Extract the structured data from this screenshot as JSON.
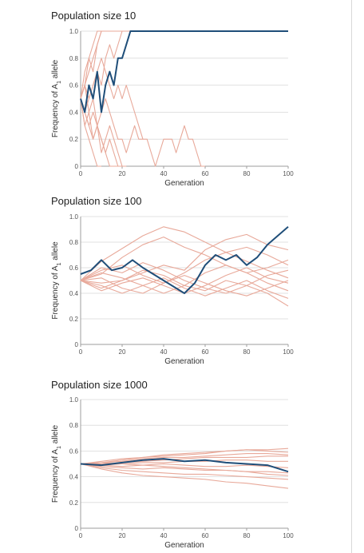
{
  "colors": {
    "highlight": "#1f4e79",
    "background_lines": "#e8a99a",
    "grid": "#d9d9d9",
    "axis": "#9e9e9e"
  },
  "chart_data": [
    {
      "type": "line",
      "title": "Population size 10",
      "xlabel": "Generation",
      "ylabel": "Frequency of A1 allele",
      "xlim": [
        0,
        100
      ],
      "ylim": [
        0,
        1.0
      ],
      "xticks": [
        0,
        20,
        40,
        60,
        80,
        100
      ],
      "yticks": [
        0,
        0.2,
        0.4,
        0.6,
        0.8,
        1.0
      ],
      "ytick_labels": [
        "0",
        "0.2",
        "0.4",
        "0.6",
        "0.8",
        "1.0"
      ],
      "grid": true,
      "highlight_series": {
        "x": [
          0,
          2,
          4,
          6,
          8,
          10,
          12,
          14,
          16,
          18,
          20,
          22,
          24,
          26,
          28,
          30,
          35,
          40,
          50,
          60,
          70,
          80,
          90,
          100
        ],
        "y": [
          0.5,
          0.4,
          0.6,
          0.5,
          0.7,
          0.4,
          0.6,
          0.7,
          0.6,
          0.8,
          0.8,
          0.9,
          1.0,
          1.0,
          1.0,
          1.0,
          1.0,
          1.0,
          1.0,
          1.0,
          1.0,
          1.0,
          1.0,
          1.0
        ]
      },
      "background_series": [
        {
          "x": [
            0,
            2,
            4,
            6,
            8,
            10,
            12,
            14,
            16,
            18,
            20
          ],
          "y": [
            0.5,
            0.6,
            0.7,
            0.8,
            0.9,
            1.0,
            1.0,
            1.0,
            1.0,
            1.0,
            1.0
          ]
        },
        {
          "x": [
            0,
            2,
            4,
            6,
            8,
            10,
            12,
            14
          ],
          "y": [
            0.5,
            0.7,
            0.8,
            0.9,
            1.0,
            1.0,
            1.0,
            1.0
          ]
        },
        {
          "x": [
            0,
            2,
            4,
            6,
            8,
            10,
            12,
            14,
            16
          ],
          "y": [
            0.5,
            0.6,
            0.8,
            0.7,
            0.9,
            1.0,
            1.0,
            1.0,
            1.0
          ]
        },
        {
          "x": [
            0,
            2,
            4,
            6,
            8,
            10,
            12,
            14,
            16,
            18,
            20,
            22,
            24
          ],
          "y": [
            0.5,
            0.4,
            0.5,
            0.6,
            0.7,
            0.6,
            0.8,
            0.9,
            0.8,
            0.9,
            1.0,
            1.0,
            1.0
          ]
        },
        {
          "x": [
            0,
            2,
            4,
            6,
            8,
            10,
            12,
            14,
            16,
            18,
            20,
            22,
            24,
            26,
            28,
            30
          ],
          "y": [
            0.5,
            0.6,
            0.5,
            0.6,
            0.7,
            0.8,
            0.7,
            0.6,
            0.5,
            0.6,
            0.5,
            0.6,
            0.5,
            0.4,
            0.3,
            0.2
          ]
        },
        {
          "x": [
            0,
            2,
            4,
            6,
            8,
            10,
            12,
            14,
            16,
            18,
            20,
            22,
            24,
            26,
            28,
            30,
            32,
            34,
            36,
            38,
            40,
            42,
            44,
            46,
            48,
            50,
            52,
            54,
            56,
            58,
            60
          ],
          "y": [
            0.5,
            0.6,
            0.4,
            0.5,
            0.3,
            0.4,
            0.5,
            0.4,
            0.3,
            0.2,
            0.2,
            0.1,
            0.2,
            0.3,
            0.2,
            0.2,
            0.2,
            0.1,
            0.0,
            0.1,
            0.2,
            0.2,
            0.2,
            0.1,
            0.2,
            0.3,
            0.2,
            0.2,
            0.1,
            0.0,
            0.0
          ]
        },
        {
          "x": [
            0,
            2,
            4,
            6,
            8,
            10,
            12,
            14,
            16,
            18,
            20
          ],
          "y": [
            0.5,
            0.4,
            0.3,
            0.4,
            0.3,
            0.2,
            0.1,
            0.2,
            0.1,
            0.0,
            0.0
          ]
        },
        {
          "x": [
            0,
            2,
            4,
            6,
            8,
            10,
            12,
            14,
            16,
            18
          ],
          "y": [
            0.5,
            0.4,
            0.3,
            0.2,
            0.3,
            0.2,
            0.1,
            0.0,
            0.0,
            0.0
          ]
        },
        {
          "x": [
            0,
            2,
            4,
            6,
            8,
            10,
            12,
            14,
            16,
            18,
            20,
            22
          ],
          "y": [
            0.5,
            0.3,
            0.4,
            0.2,
            0.3,
            0.1,
            0.2,
            0.3,
            0.2,
            0.1,
            0.0,
            0.0
          ]
        },
        {
          "x": [
            0,
            2,
            4,
            6,
            8,
            10
          ],
          "y": [
            0.5,
            0.3,
            0.2,
            0.1,
            0.0,
            0.0
          ]
        }
      ]
    },
    {
      "type": "line",
      "title": "Population size 100",
      "xlabel": "Generation",
      "ylabel": "Frequency of A1 allele",
      "xlim": [
        0,
        100
      ],
      "ylim": [
        0,
        1.0
      ],
      "xticks": [
        0,
        20,
        40,
        60,
        80,
        100
      ],
      "yticks": [
        0,
        0.2,
        0.4,
        0.6,
        0.8,
        1.0
      ],
      "ytick_labels": [
        "0",
        "0.2",
        "0.4",
        "0.6",
        "0.8",
        "1.0"
      ],
      "grid": true,
      "highlight_series": {
        "x": [
          0,
          5,
          10,
          15,
          20,
          25,
          30,
          35,
          40,
          45,
          50,
          55,
          60,
          65,
          70,
          75,
          80,
          85,
          90,
          95,
          100
        ],
        "y": [
          0.55,
          0.58,
          0.66,
          0.58,
          0.6,
          0.66,
          0.6,
          0.55,
          0.5,
          0.45,
          0.4,
          0.48,
          0.62,
          0.7,
          0.66,
          0.7,
          0.62,
          0.68,
          0.78,
          0.85,
          0.92
        ]
      },
      "background_series": [
        {
          "x": [
            0,
            10,
            20,
            30,
            40,
            50,
            60,
            70,
            80,
            90,
            100
          ],
          "y": [
            0.5,
            0.65,
            0.75,
            0.85,
            0.92,
            0.88,
            0.8,
            0.72,
            0.65,
            0.58,
            0.52
          ]
        },
        {
          "x": [
            0,
            10,
            20,
            30,
            40,
            50,
            60,
            70,
            80,
            90,
            100
          ],
          "y": [
            0.5,
            0.55,
            0.68,
            0.78,
            0.84,
            0.76,
            0.7,
            0.62,
            0.56,
            0.6,
            0.66
          ]
        },
        {
          "x": [
            0,
            10,
            20,
            30,
            40,
            50,
            60,
            70,
            80,
            90,
            100
          ],
          "y": [
            0.5,
            0.48,
            0.5,
            0.56,
            0.62,
            0.58,
            0.74,
            0.82,
            0.86,
            0.78,
            0.74
          ]
        },
        {
          "x": [
            0,
            10,
            20,
            30,
            40,
            50,
            60,
            70,
            80,
            90,
            100
          ],
          "y": [
            0.5,
            0.42,
            0.48,
            0.52,
            0.46,
            0.4,
            0.46,
            0.54,
            0.6,
            0.52,
            0.48
          ]
        },
        {
          "x": [
            0,
            10,
            20,
            30,
            40,
            50,
            60,
            70,
            80,
            90,
            100
          ],
          "y": [
            0.5,
            0.46,
            0.4,
            0.46,
            0.52,
            0.44,
            0.38,
            0.44,
            0.5,
            0.42,
            0.36
          ]
        },
        {
          "x": [
            0,
            10,
            20,
            30,
            40,
            50,
            60,
            70,
            80,
            90,
            100
          ],
          "y": [
            0.5,
            0.56,
            0.52,
            0.46,
            0.4,
            0.46,
            0.56,
            0.62,
            0.56,
            0.48,
            0.42
          ]
        },
        {
          "x": [
            0,
            10,
            20,
            30,
            40,
            50,
            60,
            70,
            80,
            90,
            100
          ],
          "y": [
            0.5,
            0.58,
            0.62,
            0.54,
            0.48,
            0.56,
            0.66,
            0.72,
            0.76,
            0.7,
            0.62
          ]
        },
        {
          "x": [
            0,
            10,
            20,
            30,
            40,
            50,
            60,
            70,
            80,
            90,
            100
          ],
          "y": [
            0.5,
            0.44,
            0.5,
            0.58,
            0.54,
            0.46,
            0.42,
            0.5,
            0.46,
            0.4,
            0.3
          ]
        },
        {
          "x": [
            0,
            10,
            20,
            30,
            40,
            50,
            60,
            70,
            80,
            90,
            100
          ],
          "y": [
            0.5,
            0.52,
            0.44,
            0.4,
            0.48,
            0.54,
            0.48,
            0.42,
            0.38,
            0.44,
            0.5
          ]
        },
        {
          "x": [
            0,
            10,
            20,
            30,
            40,
            50,
            60,
            70,
            80,
            90,
            100
          ],
          "y": [
            0.5,
            0.6,
            0.56,
            0.64,
            0.58,
            0.5,
            0.44,
            0.4,
            0.46,
            0.54,
            0.58
          ]
        }
      ]
    },
    {
      "type": "line",
      "title": "Population size 1000",
      "xlabel": "Generation",
      "ylabel": "Frequency of A1 allele",
      "xlim": [
        0,
        100
      ],
      "ylim": [
        0,
        1.0
      ],
      "xticks": [
        0,
        20,
        40,
        60,
        80,
        100
      ],
      "yticks": [
        0,
        0.2,
        0.4,
        0.6,
        0.8,
        1.0
      ],
      "ytick_labels": [
        "0",
        "0.2",
        "0.4",
        "0.6",
        "0.8",
        "1.0"
      ],
      "grid": true,
      "highlight_series": {
        "x": [
          0,
          10,
          20,
          30,
          40,
          50,
          60,
          70,
          80,
          90,
          100
        ],
        "y": [
          0.5,
          0.49,
          0.51,
          0.53,
          0.54,
          0.52,
          0.53,
          0.51,
          0.5,
          0.49,
          0.44
        ]
      },
      "background_series": [
        {
          "x": [
            0,
            10,
            20,
            30,
            40,
            50,
            60,
            70,
            80,
            90,
            100
          ],
          "y": [
            0.5,
            0.51,
            0.53,
            0.55,
            0.57,
            0.58,
            0.59,
            0.6,
            0.61,
            0.61,
            0.62
          ]
        },
        {
          "x": [
            0,
            10,
            20,
            30,
            40,
            50,
            60,
            70,
            80,
            90,
            100
          ],
          "y": [
            0.5,
            0.52,
            0.54,
            0.55,
            0.56,
            0.57,
            0.58,
            0.6,
            0.61,
            0.6,
            0.59
          ]
        },
        {
          "x": [
            0,
            10,
            20,
            30,
            40,
            50,
            60,
            70,
            80,
            90,
            100
          ],
          "y": [
            0.5,
            0.51,
            0.52,
            0.54,
            0.55,
            0.55,
            0.56,
            0.57,
            0.58,
            0.58,
            0.57
          ]
        },
        {
          "x": [
            0,
            10,
            20,
            30,
            40,
            50,
            60,
            70,
            80,
            90,
            100
          ],
          "y": [
            0.5,
            0.5,
            0.51,
            0.52,
            0.53,
            0.54,
            0.55,
            0.55,
            0.55,
            0.56,
            0.56
          ]
        },
        {
          "x": [
            0,
            10,
            20,
            30,
            40,
            50,
            60,
            70,
            80,
            90,
            100
          ],
          "y": [
            0.5,
            0.49,
            0.5,
            0.51,
            0.51,
            0.52,
            0.52,
            0.53,
            0.53,
            0.52,
            0.52
          ]
        },
        {
          "x": [
            0,
            10,
            20,
            30,
            40,
            50,
            60,
            70,
            80,
            90,
            100
          ],
          "y": [
            0.5,
            0.49,
            0.48,
            0.49,
            0.5,
            0.49,
            0.48,
            0.48,
            0.49,
            0.48,
            0.47
          ]
        },
        {
          "x": [
            0,
            10,
            20,
            30,
            40,
            50,
            60,
            70,
            80,
            90,
            100
          ],
          "y": [
            0.5,
            0.48,
            0.47,
            0.46,
            0.47,
            0.46,
            0.45,
            0.45,
            0.44,
            0.44,
            0.43
          ]
        },
        {
          "x": [
            0,
            10,
            20,
            30,
            40,
            50,
            60,
            70,
            80,
            90,
            100
          ],
          "y": [
            0.5,
            0.47,
            0.45,
            0.44,
            0.43,
            0.42,
            0.42,
            0.41,
            0.4,
            0.39,
            0.38
          ]
        },
        {
          "x": [
            0,
            10,
            20,
            30,
            40,
            50,
            60,
            70,
            80,
            90,
            100
          ],
          "y": [
            0.5,
            0.46,
            0.43,
            0.41,
            0.4,
            0.39,
            0.38,
            0.36,
            0.35,
            0.33,
            0.31
          ]
        },
        {
          "x": [
            0,
            10,
            20,
            30,
            40,
            50,
            60,
            70,
            80,
            90,
            100
          ],
          "y": [
            0.5,
            0.51,
            0.5,
            0.49,
            0.48,
            0.47,
            0.46,
            0.45,
            0.44,
            0.42,
            0.41
          ]
        }
      ]
    }
  ]
}
